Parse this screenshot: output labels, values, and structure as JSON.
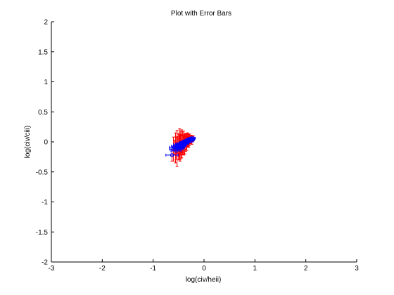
{
  "chart_data": {
    "type": "scatter",
    "title": "Plot with Error Bars",
    "xlabel": "log(civ/heii)",
    "ylabel": "log(civ/ciii)",
    "xlim": [
      -3,
      3
    ],
    "ylim": [
      -2,
      2
    ],
    "x_ticks": [
      -3,
      -2,
      -1,
      0,
      1,
      2,
      3
    ],
    "x_tick_labels": [
      "-3",
      "-2",
      "-1",
      "0",
      "1",
      "2",
      "3"
    ],
    "y_ticks": [
      -2,
      -1.5,
      -1,
      -0.5,
      0,
      0.5,
      1,
      1.5,
      2
    ],
    "y_tick_labels": [
      "-2",
      "-1.5",
      "-1",
      "-0.5",
      "0",
      "0.5",
      "1",
      "1.5",
      "2"
    ],
    "grid": false,
    "colors": {
      "x_error": "#0000ff",
      "y_error": "#ff0000",
      "marker": "#0000ff",
      "axes": "#000000"
    },
    "series": [
      {
        "x": [
          -0.63,
          -0.6,
          -0.58,
          -0.56,
          -0.55,
          -0.53,
          -0.52,
          -0.5,
          -0.49,
          -0.48,
          -0.47,
          -0.46,
          -0.45,
          -0.44,
          -0.43,
          -0.42,
          -0.41,
          -0.4,
          -0.39,
          -0.38,
          -0.37,
          -0.36,
          -0.35,
          -0.34,
          -0.33,
          -0.32,
          -0.31,
          -0.3,
          -0.29,
          -0.28,
          -0.27,
          -0.26,
          -0.25,
          -0.24,
          -0.23,
          -0.22,
          -0.21,
          -0.5,
          -0.45,
          -0.4,
          -0.35,
          -0.3,
          -0.55,
          -0.47
        ],
        "y": [
          -0.22,
          -0.12,
          -0.09,
          -0.1,
          -0.07,
          -0.11,
          -0.05,
          -0.08,
          -0.06,
          -0.04,
          -0.09,
          -0.02,
          -0.05,
          -0.03,
          -0.07,
          -0.01,
          -0.04,
          -0.02,
          0.0,
          -0.03,
          0.01,
          -0.01,
          0.02,
          0.0,
          0.01,
          0.03,
          0.02,
          0.04,
          0.01,
          0.05,
          0.03,
          0.04,
          0.06,
          0.02,
          0.05,
          0.04,
          0.06,
          -0.12,
          -0.08,
          -0.05,
          -0.02,
          0.01,
          -0.15,
          -0.1
        ],
        "x_err": [
          0.12,
          0.08,
          0.1,
          0.07,
          0.09,
          0.06,
          0.08,
          0.07,
          0.06,
          0.08,
          0.05,
          0.07,
          0.06,
          0.05,
          0.07,
          0.06,
          0.05,
          0.06,
          0.05,
          0.07,
          0.05,
          0.06,
          0.05,
          0.04,
          0.06,
          0.05,
          0.04,
          0.05,
          0.04,
          0.05,
          0.04,
          0.05,
          0.04,
          0.03,
          0.04,
          0.03,
          0.04,
          0.09,
          0.07,
          0.06,
          0.05,
          0.05,
          0.1,
          0.08
        ],
        "y_err": [
          0.1,
          0.2,
          0.12,
          0.25,
          0.15,
          0.3,
          0.14,
          0.22,
          0.18,
          0.26,
          0.12,
          0.2,
          0.16,
          0.23,
          0.1,
          0.19,
          0.14,
          0.2,
          0.12,
          0.17,
          0.09,
          0.15,
          0.11,
          0.14,
          0.08,
          0.12,
          0.1,
          0.09,
          0.07,
          0.08,
          0.06,
          0.07,
          0.05,
          0.06,
          0.05,
          0.04,
          0.04,
          0.18,
          0.2,
          0.16,
          0.12,
          0.1,
          0.14,
          0.22
        ]
      }
    ]
  }
}
